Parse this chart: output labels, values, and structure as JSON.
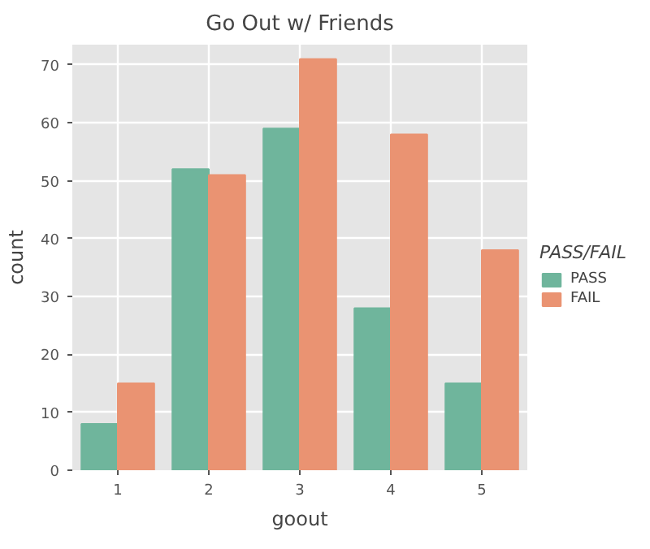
{
  "chart_data": {
    "type": "bar",
    "title": "Go Out w/ Friends",
    "xlabel": "goout",
    "ylabel": "count",
    "legend_title": "PASS/FAIL",
    "categories": [
      "1",
      "2",
      "3",
      "4",
      "5"
    ],
    "series": [
      {
        "name": "PASS",
        "color": "#6fb59c",
        "values": [
          8,
          52,
          59,
          28,
          15
        ]
      },
      {
        "name": "FAIL",
        "color": "#ea9372",
        "values": [
          15,
          51,
          71,
          58,
          38
        ]
      }
    ],
    "ylim": [
      0,
      73.5
    ],
    "yticks": [
      0,
      10,
      20,
      30,
      40,
      50,
      60,
      70
    ],
    "grid": true,
    "legend": "right"
  }
}
